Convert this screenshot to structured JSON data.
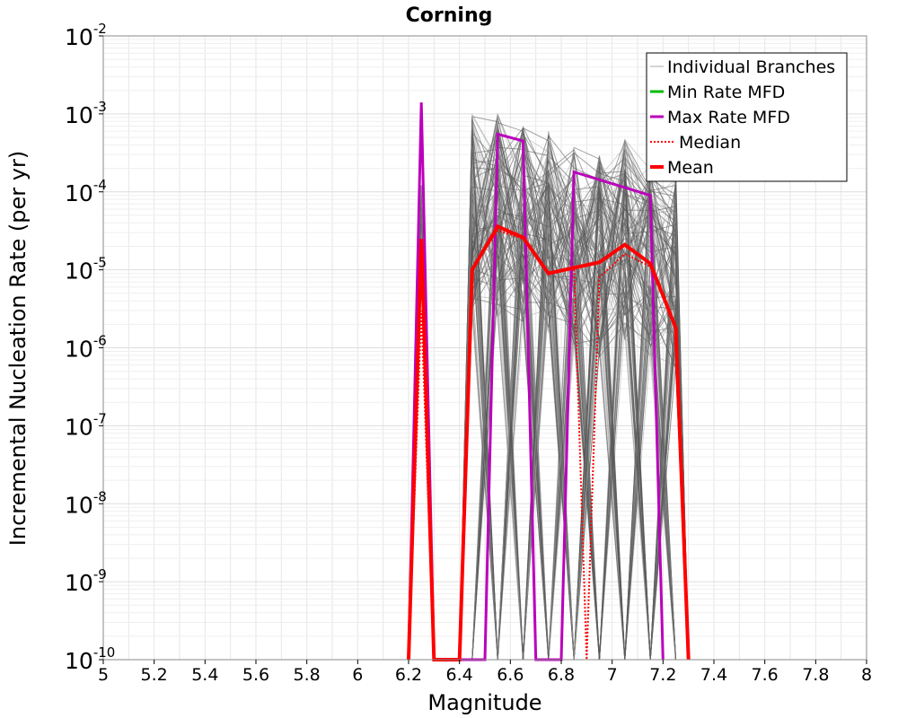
{
  "chart_data": {
    "type": "line",
    "title": "Corning",
    "xlabel": "Magnitude",
    "ylabel": "Incremental Nucleation Rate (per yr)",
    "xlim": [
      5,
      8
    ],
    "ylim": [
      1e-10,
      0.01
    ],
    "yscale": "log",
    "grid": true,
    "legend_position": "top-right",
    "x_ticks": [
      "5",
      "5.2",
      "5.4",
      "5.6",
      "5.8",
      "6",
      "6.2",
      "6.4",
      "6.6",
      "6.8",
      "7",
      "7.2",
      "7.4",
      "7.6",
      "7.8",
      "8"
    ],
    "y_ticks": [
      {
        "base": "10",
        "exp": "-10"
      },
      {
        "base": "10",
        "exp": "-9"
      },
      {
        "base": "10",
        "exp": "-8"
      },
      {
        "base": "10",
        "exp": "-7"
      },
      {
        "base": "10",
        "exp": "-6"
      },
      {
        "base": "10",
        "exp": "-5"
      },
      {
        "base": "10",
        "exp": "-4"
      },
      {
        "base": "10",
        "exp": "-3"
      },
      {
        "base": "10",
        "exp": "-2"
      }
    ],
    "legend": [
      {
        "name": "Individual Branches",
        "color": "#aaaaaa",
        "style": "thin"
      },
      {
        "name": "Min Rate MFD",
        "color": "#00bb00",
        "style": "solid"
      },
      {
        "name": "Max Rate MFD",
        "color": "#bb00bb",
        "style": "solid"
      },
      {
        "name": "Median",
        "color": "#ff0000",
        "style": "dotted"
      },
      {
        "name": "Mean",
        "color": "#ff0000",
        "style": "thick"
      }
    ],
    "series": [
      {
        "name": "Max Rate MFD",
        "color": "#bb00bb",
        "points": [
          [
            6.2,
            1e-10
          ],
          [
            6.25,
            0.0014
          ],
          [
            6.3,
            1e-10
          ],
          [
            6.5,
            1e-10
          ],
          [
            6.55,
            0.00055
          ],
          [
            6.65,
            0.00045
          ],
          [
            6.7,
            1e-10
          ],
          [
            6.8,
            1e-10
          ],
          [
            6.85,
            0.00018
          ],
          [
            7.15,
            9e-05
          ],
          [
            7.2,
            1e-10
          ]
        ]
      },
      {
        "name": "Median",
        "color": "#ff0000",
        "points": [
          [
            6.2,
            1e-10
          ],
          [
            6.25,
            3e-06
          ],
          [
            6.3,
            1e-10
          ],
          [
            6.4,
            1e-10
          ],
          [
            6.45,
            1e-05
          ],
          [
            6.55,
            3.2e-05
          ],
          [
            6.65,
            2.5e-05
          ],
          [
            6.75,
            9e-06
          ],
          [
            6.85,
            1.1e-05
          ],
          [
            6.9,
            1e-10
          ],
          [
            6.95,
            8e-06
          ],
          [
            7.05,
            1.6e-05
          ],
          [
            7.15,
            1.1e-05
          ],
          [
            7.25,
            1.8e-06
          ],
          [
            7.3,
            1e-10
          ]
        ]
      },
      {
        "name": "Mean",
        "color": "#ff0000",
        "points": [
          [
            6.2,
            1e-10
          ],
          [
            6.25,
            2.5e-05
          ],
          [
            6.3,
            1e-10
          ],
          [
            6.4,
            1e-10
          ],
          [
            6.45,
            1e-05
          ],
          [
            6.55,
            3.6e-05
          ],
          [
            6.65,
            2.6e-05
          ],
          [
            6.75,
            9e-06
          ],
          [
            6.95,
            1.25e-05
          ],
          [
            7.05,
            2.1e-05
          ],
          [
            7.15,
            1.2e-05
          ],
          [
            7.25,
            1.8e-06
          ],
          [
            7.3,
            1e-10
          ]
        ]
      }
    ],
    "branch_envelope": [
      {
        "x": 6.45,
        "y_low": 1e-10,
        "y_high": 0.0011
      },
      {
        "x": 6.55,
        "y_low": 1e-10,
        "y_high": 0.001
      },
      {
        "x": 6.65,
        "y_low": 1e-10,
        "y_high": 0.0008
      },
      {
        "x": 6.75,
        "y_low": 1e-10,
        "y_high": 0.0006
      },
      {
        "x": 6.85,
        "y_low": 1e-10,
        "y_high": 0.0004
      },
      {
        "x": 6.95,
        "y_low": 1e-10,
        "y_high": 0.0003
      },
      {
        "x": 7.05,
        "y_low": 1e-10,
        "y_high": 0.0005
      },
      {
        "x": 7.15,
        "y_low": 1e-10,
        "y_high": 0.0003
      },
      {
        "x": 7.25,
        "y_low": 1e-10,
        "y_high": 0.0002
      }
    ],
    "branch_count_drawn": 140
  }
}
